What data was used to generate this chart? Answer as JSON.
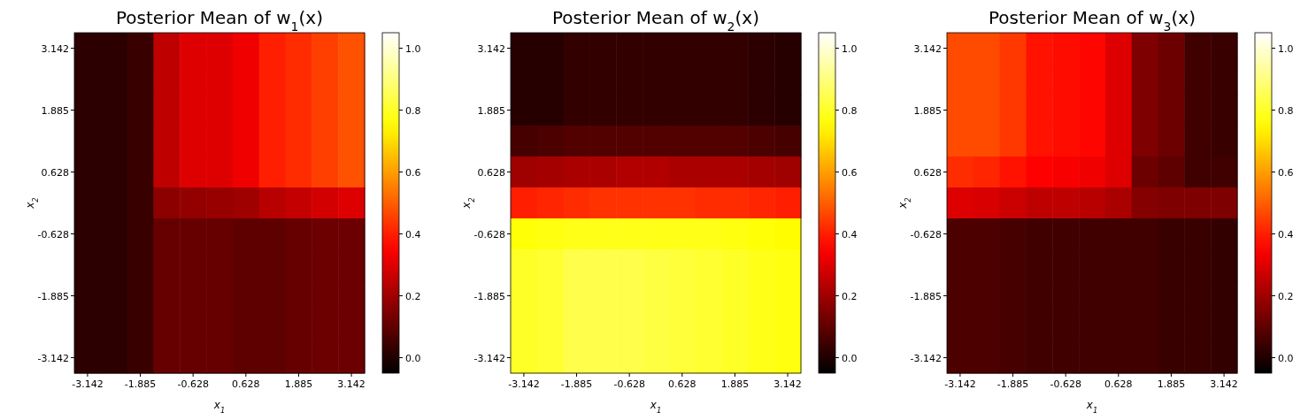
{
  "chart_data": [
    {
      "type": "heatmap",
      "title": "Posterior Mean of w$_{1}$(x)",
      "xlabel": "x$_{1}$",
      "ylabel": "x$_{2}$",
      "categories": [
        "-3.142",
        null,
        "-1.885",
        null,
        "-0.628",
        null,
        "0.628",
        null,
        "1.885",
        null,
        "3.142"
      ],
      "y_categories": [
        "3.142",
        null,
        "1.885",
        null,
        "0.628",
        null,
        "-0.628",
        null,
        "-1.885",
        null,
        "-3.142"
      ],
      "clim": [
        -0.05,
        1.05
      ],
      "cticks": [
        {
          "value": 0,
          "label": "0.0"
        },
        {
          "value": 0.2,
          "label": "0.2"
        },
        {
          "value": 0.4,
          "label": "0.4"
        },
        {
          "value": 0.6,
          "label": "0.6"
        },
        {
          "value": 0.8,
          "label": "0.8"
        },
        {
          "value": 1,
          "label": "1.0"
        }
      ],
      "cells": [
        [
          0.02,
          0.02,
          0.04,
          0.25,
          0.3,
          0.3,
          0.33,
          0.4,
          0.42,
          0.45,
          0.48
        ],
        [
          0.02,
          0.02,
          0.04,
          0.25,
          0.3,
          0.3,
          0.33,
          0.4,
          0.42,
          0.45,
          0.48
        ],
        [
          0.02,
          0.02,
          0.04,
          0.25,
          0.3,
          0.3,
          0.33,
          0.4,
          0.42,
          0.45,
          0.48
        ],
        [
          0.02,
          0.02,
          0.04,
          0.25,
          0.3,
          0.3,
          0.33,
          0.4,
          0.42,
          0.45,
          0.48
        ],
        [
          0.02,
          0.02,
          0.04,
          0.25,
          0.3,
          0.3,
          0.33,
          0.4,
          0.42,
          0.45,
          0.48
        ],
        [
          0.02,
          0.02,
          0.04,
          0.17,
          0.18,
          0.19,
          0.2,
          0.24,
          0.26,
          0.28,
          0.3
        ],
        [
          0.02,
          0.02,
          0.04,
          0.11,
          0.11,
          0.11,
          0.1,
          0.1,
          0.11,
          0.12,
          0.12
        ],
        [
          0.02,
          0.02,
          0.04,
          0.11,
          0.11,
          0.11,
          0.1,
          0.1,
          0.11,
          0.12,
          0.12
        ],
        [
          0.02,
          0.02,
          0.04,
          0.11,
          0.11,
          0.11,
          0.1,
          0.1,
          0.11,
          0.12,
          0.12
        ],
        [
          0.02,
          0.02,
          0.04,
          0.11,
          0.11,
          0.11,
          0.1,
          0.1,
          0.11,
          0.12,
          0.12
        ],
        [
          0.02,
          0.02,
          0.04,
          0.11,
          0.11,
          0.11,
          0.1,
          0.1,
          0.11,
          0.12,
          0.12
        ]
      ]
    },
    {
      "type": "heatmap",
      "title": "Posterior Mean of w$_{2}$(x)",
      "xlabel": "x$_{1}$",
      "ylabel": "x$_{2}$",
      "categories": [
        "-3.142",
        null,
        "-1.885",
        null,
        "-0.628",
        null,
        "0.628",
        null,
        "1.885",
        null,
        "3.142"
      ],
      "y_categories": [
        "3.142",
        null,
        "1.885",
        null,
        "0.628",
        null,
        "-0.628",
        null,
        "-1.885",
        null,
        "-3.142"
      ],
      "clim": [
        -0.05,
        1.05
      ],
      "cticks": [
        {
          "value": 0,
          "label": "0.0"
        },
        {
          "value": 0.2,
          "label": "0.2"
        },
        {
          "value": 0.4,
          "label": "0.4"
        },
        {
          "value": 0.6,
          "label": "0.6"
        },
        {
          "value": 0.8,
          "label": "0.8"
        },
        {
          "value": 1,
          "label": "1.0"
        }
      ],
      "cells": [
        [
          0.01,
          0.01,
          0.03,
          0.03,
          0.03,
          0.03,
          0.03,
          0.03,
          0.03,
          0.02,
          0.01
        ],
        [
          0.01,
          0.01,
          0.03,
          0.03,
          0.03,
          0.03,
          0.03,
          0.03,
          0.03,
          0.02,
          0.01
        ],
        [
          0.01,
          0.01,
          0.03,
          0.03,
          0.03,
          0.03,
          0.03,
          0.03,
          0.03,
          0.02,
          0.01
        ],
        [
          0.06,
          0.07,
          0.08,
          0.08,
          0.08,
          0.08,
          0.08,
          0.08,
          0.08,
          0.07,
          0.06
        ],
        [
          0.2,
          0.21,
          0.22,
          0.22,
          0.23,
          0.23,
          0.22,
          0.22,
          0.22,
          0.21,
          0.2
        ],
        [
          0.4,
          0.41,
          0.42,
          0.43,
          0.43,
          0.43,
          0.43,
          0.42,
          0.42,
          0.41,
          0.4
        ],
        [
          0.76,
          0.77,
          0.78,
          0.78,
          0.78,
          0.78,
          0.78,
          0.78,
          0.77,
          0.76,
          0.75
        ],
        [
          0.8,
          0.81,
          0.84,
          0.84,
          0.84,
          0.83,
          0.82,
          0.81,
          0.8,
          0.78,
          0.77
        ],
        [
          0.8,
          0.81,
          0.84,
          0.84,
          0.84,
          0.83,
          0.82,
          0.81,
          0.8,
          0.78,
          0.77
        ],
        [
          0.8,
          0.81,
          0.84,
          0.84,
          0.84,
          0.83,
          0.82,
          0.81,
          0.8,
          0.78,
          0.77
        ],
        [
          0.8,
          0.81,
          0.84,
          0.84,
          0.84,
          0.83,
          0.82,
          0.81,
          0.8,
          0.78,
          0.77
        ]
      ]
    },
    {
      "type": "heatmap",
      "title": "Posterior Mean of w$_{3}$(x)",
      "xlabel": "x$_{1}$",
      "ylabel": "x$_{2}$",
      "categories": [
        "-3.142",
        null,
        "-1.885",
        null,
        "-0.628",
        null,
        "0.628",
        null,
        "1.885",
        null,
        "3.142"
      ],
      "y_categories": [
        "3.142",
        null,
        "1.885",
        null,
        "0.628",
        null,
        "-0.628",
        null,
        "-1.885",
        null,
        "-3.142"
      ],
      "clim": [
        -0.05,
        1.05
      ],
      "cticks": [
        {
          "value": 0,
          "label": "0.0"
        },
        {
          "value": 0.2,
          "label": "0.2"
        },
        {
          "value": 0.4,
          "label": "0.4"
        },
        {
          "value": 0.6,
          "label": "0.6"
        },
        {
          "value": 0.8,
          "label": "0.8"
        },
        {
          "value": 1,
          "label": "1.0"
        }
      ],
      "cells": [
        [
          0.47,
          0.47,
          0.44,
          0.38,
          0.37,
          0.36,
          0.3,
          0.15,
          0.12,
          0.05,
          0.04
        ],
        [
          0.47,
          0.47,
          0.44,
          0.38,
          0.37,
          0.36,
          0.3,
          0.15,
          0.12,
          0.05,
          0.04
        ],
        [
          0.47,
          0.47,
          0.44,
          0.38,
          0.37,
          0.36,
          0.3,
          0.15,
          0.12,
          0.05,
          0.04
        ],
        [
          0.47,
          0.47,
          0.44,
          0.38,
          0.37,
          0.36,
          0.3,
          0.15,
          0.12,
          0.05,
          0.04
        ],
        [
          0.42,
          0.41,
          0.38,
          0.35,
          0.34,
          0.33,
          0.3,
          0.12,
          0.1,
          0.05,
          0.05
        ],
        [
          0.3,
          0.29,
          0.27,
          0.25,
          0.25,
          0.24,
          0.22,
          0.16,
          0.15,
          0.15,
          0.15
        ],
        [
          0.07,
          0.07,
          0.06,
          0.05,
          0.05,
          0.05,
          0.05,
          0.05,
          0.04,
          0.04,
          0.03
        ],
        [
          0.07,
          0.07,
          0.06,
          0.05,
          0.05,
          0.05,
          0.05,
          0.05,
          0.04,
          0.04,
          0.03
        ],
        [
          0.07,
          0.07,
          0.06,
          0.05,
          0.05,
          0.05,
          0.05,
          0.05,
          0.04,
          0.04,
          0.03
        ],
        [
          0.07,
          0.07,
          0.06,
          0.05,
          0.05,
          0.05,
          0.05,
          0.05,
          0.04,
          0.04,
          0.03
        ],
        [
          0.07,
          0.07,
          0.06,
          0.05,
          0.05,
          0.05,
          0.05,
          0.05,
          0.04,
          0.04,
          0.03
        ]
      ]
    }
  ]
}
